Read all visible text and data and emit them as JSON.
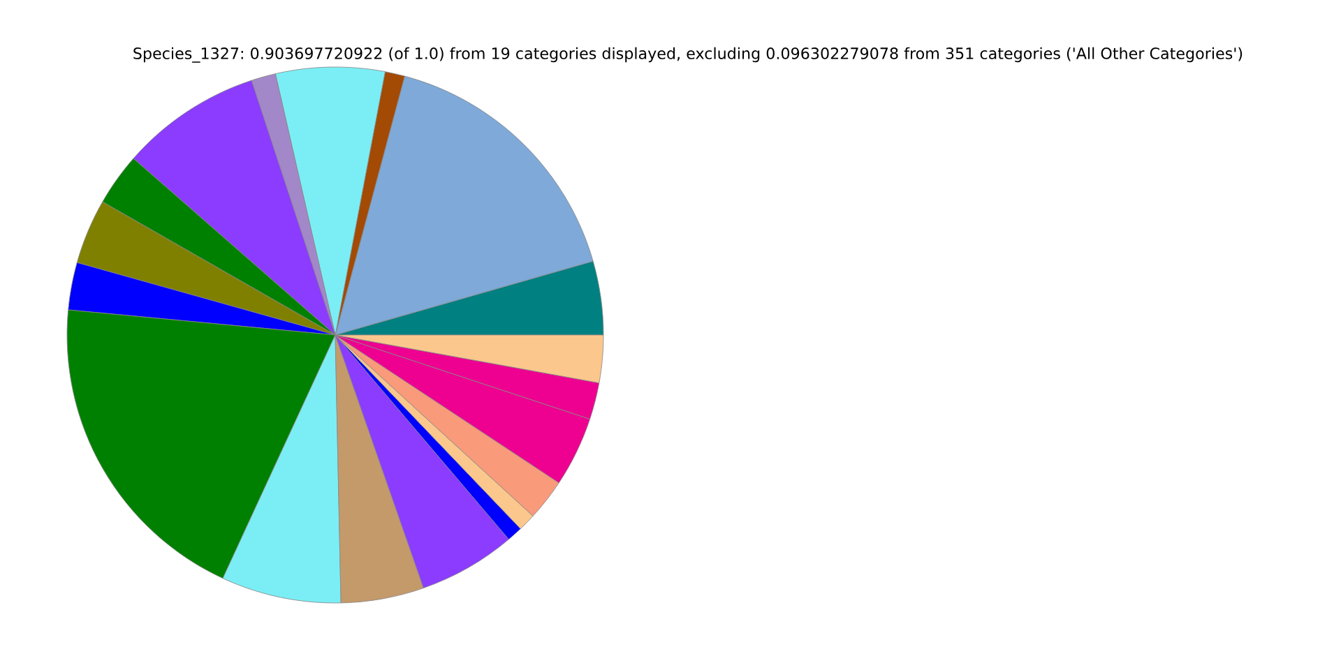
{
  "chart_data": {
    "type": "pie",
    "title": "Species_1327: 0.903697720922 (of 1.0) from 19 categories displayed, excluding 0.096302279078 from 351 categories ('All Other Categories')",
    "categories": [
      null,
      null,
      null,
      null,
      null,
      null,
      null,
      null,
      null,
      null,
      null,
      null,
      null,
      null,
      null,
      null,
      null,
      null,
      null
    ],
    "values": [
      4.44,
      16.39,
      1.19,
      6.56,
      1.47,
      8.5,
      3.17,
      3.92,
      2.86,
      19.61,
      7.22,
      5.0,
      5.86,
      0.94,
      1.06,
      2.5,
      4.22,
      2.22,
      2.86
    ],
    "colors": [
      "#008080",
      "#7ea9d8",
      "#a34a05",
      "#7beef5",
      "#a288c8",
      "#8b3cff",
      "#008000",
      "#808000",
      "#0000ff",
      "#008000",
      "#7beef5",
      "#c49a6a",
      "#8b3cff",
      "#0000ff",
      "#fcc78c",
      "#f99a7a",
      "#ee0090",
      "#ee0090",
      "#fcc78c"
    ],
    "legend": false
  }
}
